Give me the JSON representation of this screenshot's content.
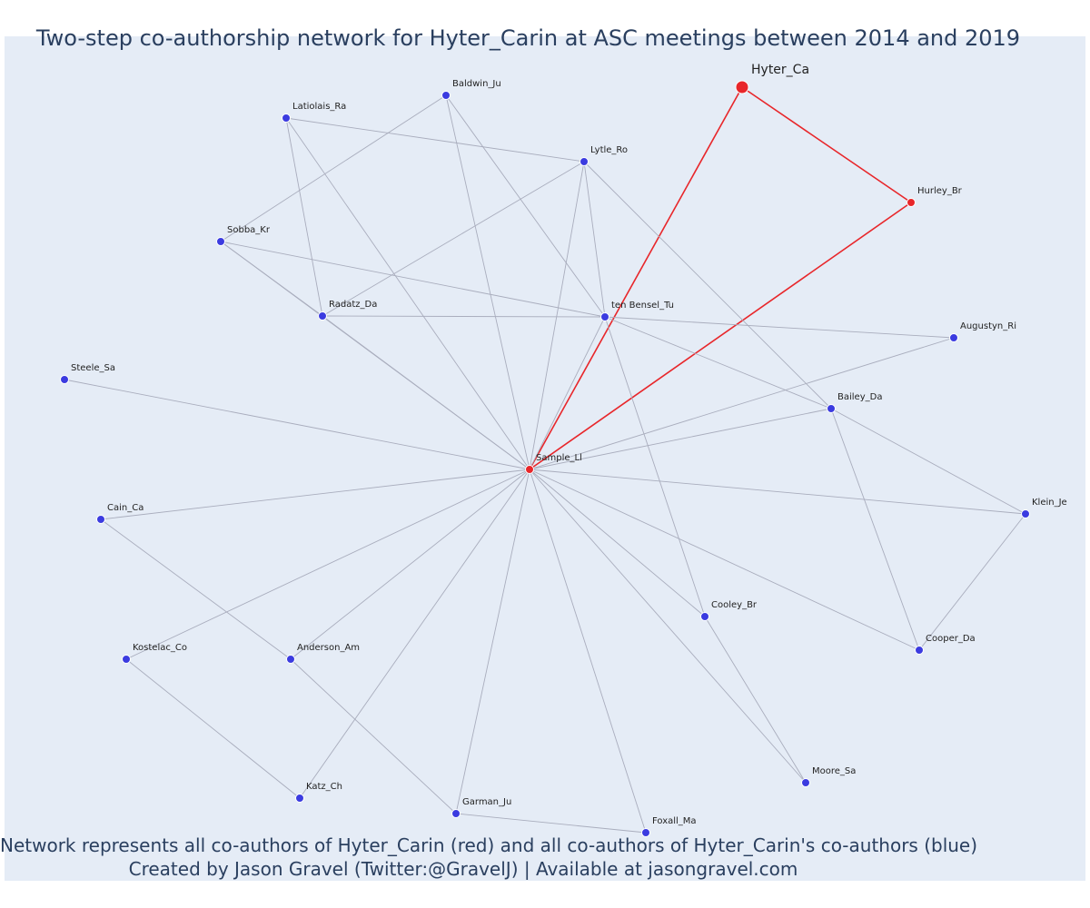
{
  "title": "Two-step co-authorship network for Hyter_Carin at ASC meetings between 2014 and 2019",
  "caption": {
    "line1": "Network represents all co-authors of Hyter_Carin (red) and all co-authors of Hyter_Carin's co-authors (blue)",
    "line2": "Created by Jason Gravel (Twitter:@GravelJ) | Available at jasongravel.com"
  },
  "colors": {
    "background": "#e5ecf6",
    "first_step": "#e8262a",
    "second_step": "#3b3be0",
    "red_edge": "#e8262a",
    "grey_edge": "#a9adbd"
  },
  "chart_data": {
    "type": "network",
    "focus": "Hyter_Ca",
    "nodes": [
      {
        "id": "Hyter_Ca",
        "group": "focus"
      },
      {
        "id": "Hurley_Br",
        "group": "coauthor"
      },
      {
        "id": "Sample_Ll",
        "group": "coauthor"
      },
      {
        "id": "Baldwin_Ju",
        "group": "second"
      },
      {
        "id": "Latiolais_Ra",
        "group": "second"
      },
      {
        "id": "Lytle_Ro",
        "group": "second"
      },
      {
        "id": "Sobba_Kr",
        "group": "second"
      },
      {
        "id": "Radatz_Da",
        "group": "second"
      },
      {
        "id": "ten Bensel_Tu",
        "group": "second"
      },
      {
        "id": "Augustyn_Ri",
        "group": "second"
      },
      {
        "id": "Steele_Sa",
        "group": "second"
      },
      {
        "id": "Bailey_Da",
        "group": "second"
      },
      {
        "id": "Cain_Ca",
        "group": "second"
      },
      {
        "id": "Klein_Je",
        "group": "second"
      },
      {
        "id": "Cooley_Br",
        "group": "second"
      },
      {
        "id": "Kostelac_Co",
        "group": "second"
      },
      {
        "id": "Anderson_Am",
        "group": "second"
      },
      {
        "id": "Cooper_Da",
        "group": "second"
      },
      {
        "id": "Moore_Sa",
        "group": "second"
      },
      {
        "id": "Katz_Ch",
        "group": "second"
      },
      {
        "id": "Garman_Ju",
        "group": "second"
      },
      {
        "id": "Foxall_Ma",
        "group": "second"
      }
    ],
    "edges": [
      [
        "Hyter_Ca",
        "Hurley_Br"
      ],
      [
        "Hyter_Ca",
        "Sample_Ll"
      ],
      [
        "Hurley_Br",
        "Sample_Ll"
      ],
      [
        "Sample_Ll",
        "Baldwin_Ju"
      ],
      [
        "Sample_Ll",
        "Latiolais_Ra"
      ],
      [
        "Sample_Ll",
        "Lytle_Ro"
      ],
      [
        "Sample_Ll",
        "Sobba_Kr"
      ],
      [
        "Sample_Ll",
        "Radatz_Da"
      ],
      [
        "Sample_Ll",
        "ten Bensel_Tu"
      ],
      [
        "Sample_Ll",
        "Augustyn_Ri"
      ],
      [
        "Sample_Ll",
        "Steele_Sa"
      ],
      [
        "Sample_Ll",
        "Bailey_Da"
      ],
      [
        "Sample_Ll",
        "Cain_Ca"
      ],
      [
        "Sample_Ll",
        "Klein_Je"
      ],
      [
        "Sample_Ll",
        "Cooley_Br"
      ],
      [
        "Sample_Ll",
        "Kostelac_Co"
      ],
      [
        "Sample_Ll",
        "Anderson_Am"
      ],
      [
        "Sample_Ll",
        "Cooper_Da"
      ],
      [
        "Sample_Ll",
        "Moore_Sa"
      ],
      [
        "Sample_Ll",
        "Katz_Ch"
      ],
      [
        "Sample_Ll",
        "Garman_Ju"
      ],
      [
        "Sample_Ll",
        "Foxall_Ma"
      ],
      [
        "Latiolais_Ra",
        "Lytle_Ro"
      ],
      [
        "Latiolais_Ra",
        "Radatz_Da"
      ],
      [
        "Baldwin_Ju",
        "Sobba_Kr"
      ],
      [
        "Baldwin_Ju",
        "ten Bensel_Tu"
      ],
      [
        "Lytle_Ro",
        "Radatz_Da"
      ],
      [
        "Lytle_Ro",
        "ten Bensel_Tu"
      ],
      [
        "Lytle_Ro",
        "Bailey_Da"
      ],
      [
        "Sobba_Kr",
        "Radatz_Da"
      ],
      [
        "Sobba_Kr",
        "ten Bensel_Tu"
      ],
      [
        "Radatz_Da",
        "ten Bensel_Tu"
      ],
      [
        "ten Bensel_Tu",
        "Augustyn_Ri"
      ],
      [
        "ten Bensel_Tu",
        "Bailey_Da"
      ],
      [
        "ten Bensel_Tu",
        "Cooley_Br"
      ],
      [
        "Bailey_Da",
        "Klein_Je"
      ],
      [
        "Bailey_Da",
        "Cooper_Da"
      ],
      [
        "Klein_Je",
        "Cooper_Da"
      ],
      [
        "Cain_Ca",
        "Anderson_Am"
      ],
      [
        "Kostelac_Co",
        "Katz_Ch"
      ],
      [
        "Anderson_Am",
        "Garman_Ju"
      ],
      [
        "Garman_Ju",
        "Foxall_Ma"
      ],
      [
        "Cooley_Br",
        "Moore_Sa"
      ]
    ]
  }
}
